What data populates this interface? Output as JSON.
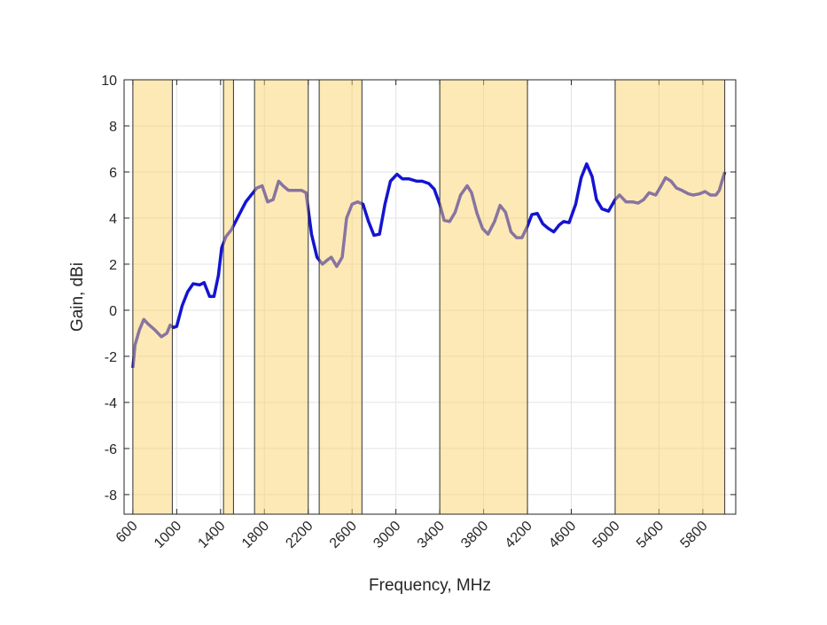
{
  "chart_data": {
    "type": "line",
    "xlabel": "Frequency, MHz",
    "ylabel": "Gain, dBi",
    "x": [
      600,
      620,
      660,
      700,
      740,
      800,
      860,
      910,
      940,
      970,
      1000,
      1050,
      1100,
      1150,
      1210,
      1250,
      1300,
      1340,
      1380,
      1410,
      1450,
      1500,
      1570,
      1630,
      1680,
      1730,
      1780,
      1830,
      1880,
      1930,
      1970,
      2020,
      2070,
      2140,
      2180,
      2230,
      2280,
      2330,
      2380,
      2410,
      2460,
      2510,
      2550,
      2600,
      2650,
      2700,
      2750,
      2800,
      2850,
      2900,
      2950,
      3010,
      3060,
      3120,
      3190,
      3240,
      3300,
      3350,
      3400,
      3440,
      3490,
      3540,
      3590,
      3650,
      3690,
      3740,
      3790,
      3840,
      3900,
      3950,
      4000,
      4050,
      4100,
      4150,
      4200,
      4240,
      4290,
      4340,
      4390,
      4440,
      4490,
      4530,
      4580,
      4640,
      4690,
      4740,
      4790,
      4830,
      4880,
      4940,
      5000,
      5040,
      5100,
      5160,
      5210,
      5260,
      5310,
      5370,
      5420,
      5460,
      5510,
      5560,
      5610,
      5670,
      5710,
      5770,
      5820,
      5870,
      5920,
      5950,
      6000
    ],
    "values": [
      -2.5,
      -1.5,
      -0.85,
      -0.4,
      -0.6,
      -0.85,
      -1.15,
      -1.0,
      -0.65,
      -0.75,
      -0.7,
      0.2,
      0.8,
      1.15,
      1.1,
      1.2,
      0.6,
      0.6,
      1.5,
      2.7,
      3.2,
      3.5,
      4.15,
      4.7,
      5.0,
      5.3,
      5.4,
      4.7,
      4.8,
      5.6,
      5.4,
      5.2,
      5.2,
      5.2,
      5.1,
      3.3,
      2.3,
      2.0,
      2.2,
      2.3,
      1.9,
      2.3,
      4.0,
      4.6,
      4.7,
      4.6,
      3.85,
      3.25,
      3.3,
      4.6,
      5.6,
      5.9,
      5.7,
      5.7,
      5.6,
      5.6,
      5.5,
      5.25,
      4.6,
      3.9,
      3.85,
      4.25,
      5.0,
      5.4,
      5.1,
      4.2,
      3.55,
      3.3,
      3.85,
      4.55,
      4.25,
      3.4,
      3.15,
      3.15,
      3.65,
      4.15,
      4.2,
      3.75,
      3.55,
      3.4,
      3.7,
      3.85,
      3.8,
      4.6,
      5.75,
      6.35,
      5.8,
      4.8,
      4.4,
      4.3,
      4.8,
      5.0,
      4.7,
      4.7,
      4.65,
      4.8,
      5.1,
      5.0,
      5.4,
      5.75,
      5.6,
      5.3,
      5.2,
      5.05,
      5.0,
      5.05,
      5.15,
      5.0,
      5.0,
      5.2,
      6.0
    ],
    "color": "#1414d2",
    "bands": [
      [
        600,
        960
      ],
      [
        1427,
        1518
      ],
      [
        1710,
        2200
      ],
      [
        2300,
        2690
      ],
      [
        3400,
        4200
      ],
      [
        5000,
        6000
      ]
    ],
    "band_color": "#fbd46d",
    "xlim": [
      520,
      6100
    ],
    "xticks": [
      600,
      1000,
      1400,
      1800,
      2200,
      2600,
      3000,
      3400,
      3800,
      4200,
      4600,
      5000,
      5400,
      5800
    ],
    "ylim": [
      -8.85,
      10
    ],
    "yticks": [
      -8,
      -6,
      -4,
      -2,
      0,
      2,
      4,
      6,
      8,
      10
    ],
    "grid": true
  }
}
